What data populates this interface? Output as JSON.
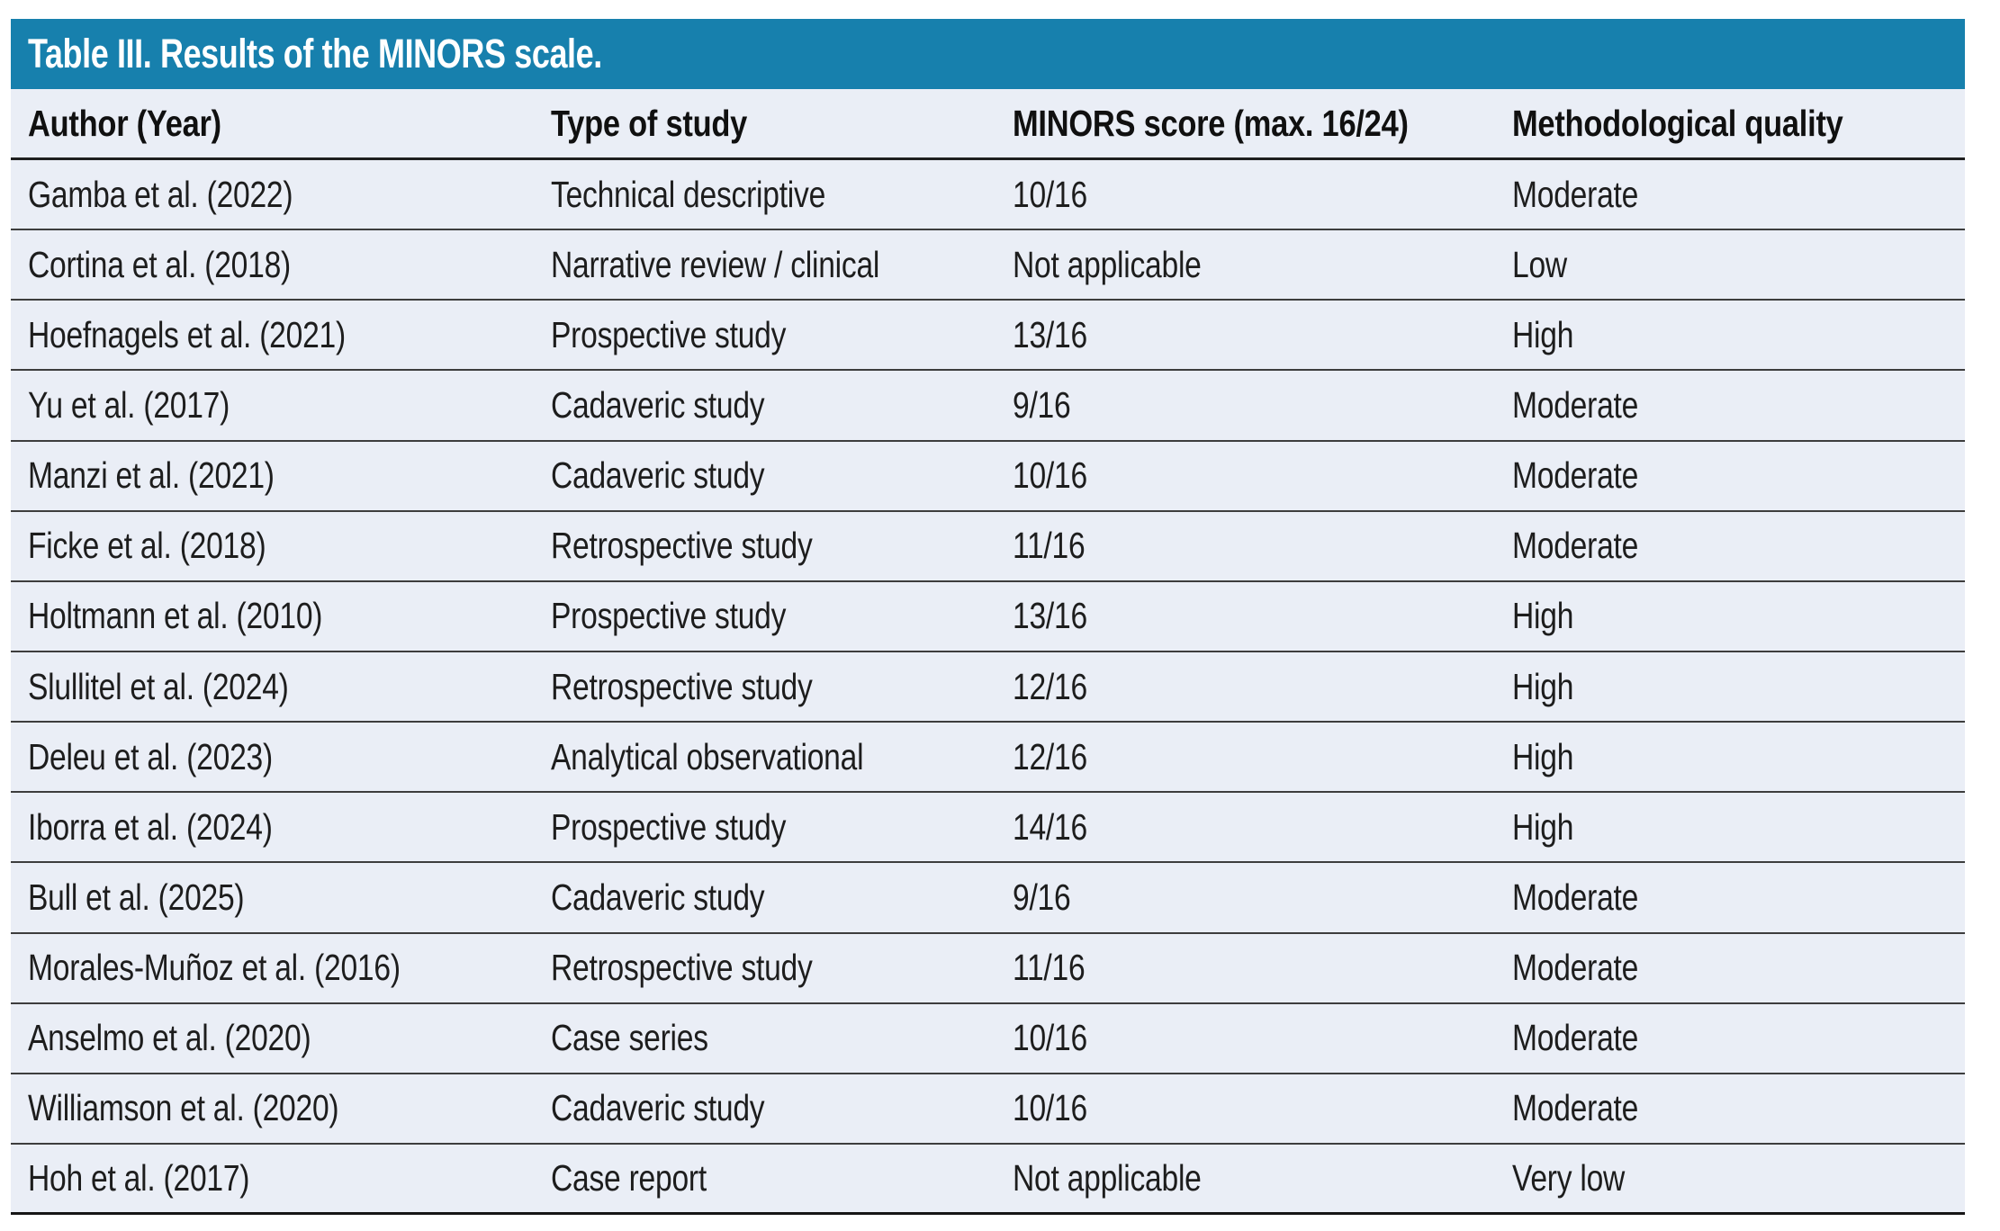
{
  "table": {
    "title": "Table III. Results of the MINORS scale.",
    "columns": [
      "Author (Year)",
      "Type of study",
      "MINORS score (max. 16/24)",
      "Methodological quality"
    ],
    "rows": [
      [
        "Gamba et al. (2022)",
        "Technical descriptive",
        "10/16",
        "Moderate"
      ],
      [
        "Cortina et al. (2018)",
        "Narrative review / clinical",
        "Not applicable",
        "Low"
      ],
      [
        "Hoefnagels et al. (2021)",
        "Prospective study",
        "13/16",
        "High"
      ],
      [
        "Yu et al. (2017)",
        "Cadaveric study",
        "9/16",
        "Moderate"
      ],
      [
        "Manzi et al. (2021)",
        "Cadaveric study",
        "10/16",
        "Moderate"
      ],
      [
        "Ficke et al. (2018)",
        "Retrospective study",
        "11/16",
        "Moderate"
      ],
      [
        "Holtmann et al. (2010)",
        "Prospective study",
        "13/16",
        "High"
      ],
      [
        "Slullitel et al. (2024)",
        "Retrospective study",
        "12/16",
        "High"
      ],
      [
        "Deleu et al. (2023)",
        "Analytical observational",
        "12/16",
        "High"
      ],
      [
        "Iborra et al. (2024)",
        "Prospective study",
        "14/16",
        "High"
      ],
      [
        "Bull et al. (2025)",
        "Cadaveric study",
        "9/16",
        "Moderate"
      ],
      [
        "Morales-Muñoz et al. (2016)",
        "Retrospective study",
        "11/16",
        "Moderate"
      ],
      [
        "Anselmo et al. (2020)",
        "Case series",
        "10/16",
        "Moderate"
      ],
      [
        "Williamson et al. (2020)",
        "Cadaveric study",
        "10/16",
        "Moderate"
      ],
      [
        "Hoh et al. (2017)",
        "Case report",
        "Not applicable",
        "Very low"
      ]
    ],
    "colors": {
      "title_bar_bg": "#1780ad",
      "title_text": "#ffffff",
      "row_bg": "#eaeef6",
      "body_text": "#1d1d1d",
      "separator_line": "#3d3d3d",
      "heavy_line": "#1f1f1f",
      "page_margin": "#ffffff"
    }
  }
}
